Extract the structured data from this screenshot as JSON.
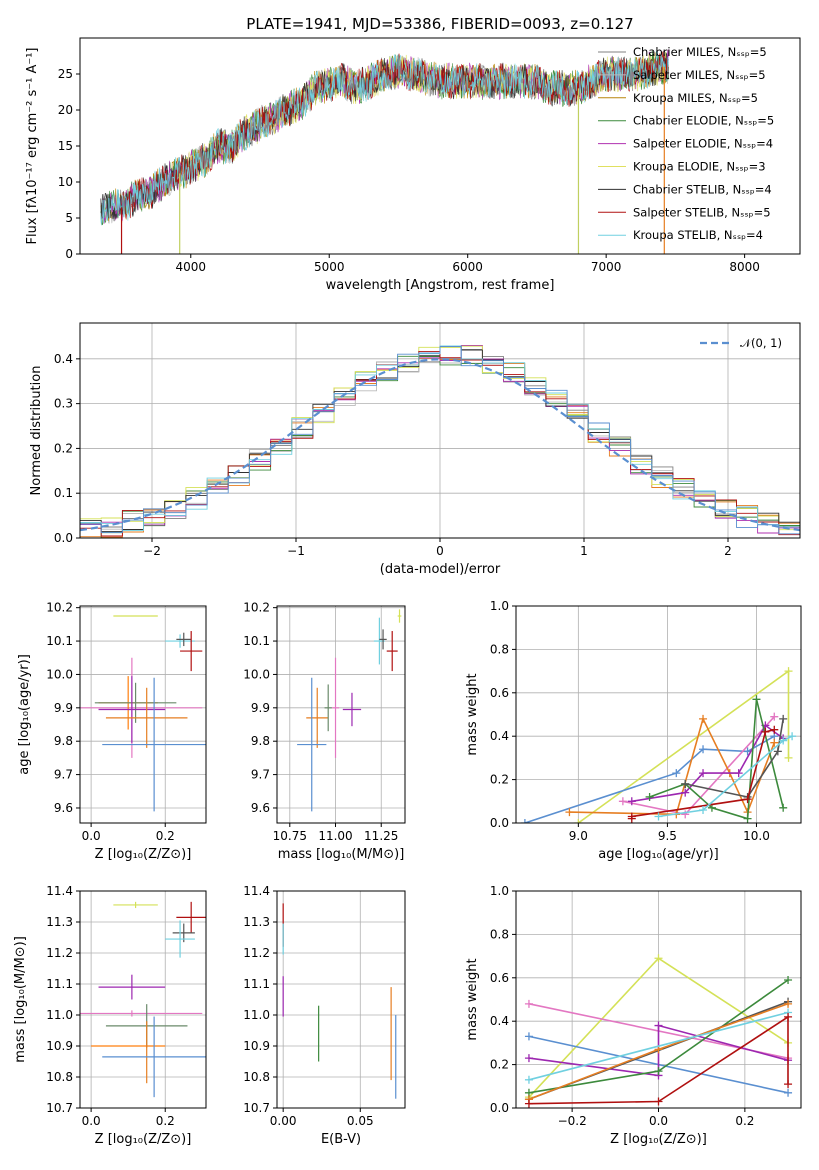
{
  "chart_data": [
    {
      "id": "spectrum",
      "type": "line",
      "title": "PLATE=1941, MJD=53386, FIBERID=0093, z=0.127",
      "xlabel": "wavelength [Angstrom, rest frame]",
      "ylabel": "Flux [fλ10⁻¹⁷ erg cm⁻² s⁻¹ A⁻¹]",
      "xlim": [
        3200,
        8400
      ],
      "ylim": [
        0,
        30
      ],
      "xticks": [
        4000,
        5000,
        6000,
        7000,
        8000
      ],
      "yticks": [
        0,
        5,
        10,
        15,
        20,
        25
      ],
      "grid": false,
      "legend_position": "top-right",
      "legend": [
        {
          "label": "Chabrier MILES, Nₛₛₚ=5",
          "color": "#808080"
        },
        {
          "label": "Salpeter MILES, Nₛₛₚ=5",
          "color": "#bbbbbb"
        },
        {
          "label": "Kroupa MILES, Nₛₛₚ=5",
          "color": "#b8860b"
        },
        {
          "label": "Chabrier ELODIE, Nₛₛₚ=5",
          "color": "#3c8a3c"
        },
        {
          "label": "Salpeter ELODIE, Nₛₛₚ=4",
          "color": "#b030b0"
        },
        {
          "label": "Kroupa ELODIE, Nₛₛₚ=3",
          "color": "#e0e060"
        },
        {
          "label": "Chabrier STELIB, Nₛₛₚ=4",
          "color": "#303030"
        },
        {
          "label": "Salpeter STELIB, Nₛₛₚ=5",
          "color": "#b01010"
        },
        {
          "label": "Kroupa STELIB, Nₛₛₚ=4",
          "color": "#70d0e0"
        }
      ],
      "continuum": [
        [
          3350,
          5.5
        ],
        [
          3400,
          6.5
        ],
        [
          3500,
          6.5
        ],
        [
          3600,
          8
        ],
        [
          3700,
          8.5
        ],
        [
          3800,
          10
        ],
        [
          3900,
          11
        ],
        [
          4000,
          12
        ],
        [
          4100,
          13
        ],
        [
          4200,
          15
        ],
        [
          4300,
          15
        ],
        [
          4400,
          17
        ],
        [
          4500,
          18
        ],
        [
          4600,
          19
        ],
        [
          4700,
          20
        ],
        [
          4800,
          21
        ],
        [
          4900,
          23
        ],
        [
          5000,
          23.5
        ],
        [
          5100,
          24
        ],
        [
          5200,
          23
        ],
        [
          5300,
          24
        ],
        [
          5400,
          25
        ],
        [
          5500,
          25.5
        ],
        [
          5600,
          25
        ],
        [
          5700,
          24.5
        ],
        [
          5800,
          24
        ],
        [
          5900,
          24
        ],
        [
          6000,
          24
        ],
        [
          6100,
          24
        ],
        [
          6200,
          24
        ],
        [
          6300,
          24
        ],
        [
          6400,
          24
        ],
        [
          6500,
          24
        ],
        [
          6600,
          23
        ],
        [
          6700,
          23
        ],
        [
          6800,
          23
        ],
        [
          6900,
          24
        ],
        [
          7000,
          25
        ],
        [
          7100,
          25
        ],
        [
          7200,
          25
        ],
        [
          7300,
          25.5
        ],
        [
          7400,
          26
        ],
        [
          7450,
          26
        ]
      ],
      "drops": [
        [
          3500,
          0
        ],
        [
          3920,
          0
        ],
        [
          6800,
          0
        ],
        [
          7420,
          0
        ]
      ]
    },
    {
      "id": "residuals",
      "type": "line",
      "xlabel": "(data-model)/error",
      "ylabel": "Normed distribution",
      "xlim": [
        -2.5,
        2.5
      ],
      "ylim": [
        0,
        0.48
      ],
      "xticks": [
        -2,
        -1,
        0,
        1,
        2
      ],
      "yticks": [
        0.0,
        0.1,
        0.2,
        0.3,
        0.4
      ],
      "grid": true,
      "legend_position": "top-right",
      "reference_label": "𝒩(0, 1)",
      "reference_color": "#5a8fd0"
    },
    {
      "id": "age-vs-Z",
      "type": "scatter",
      "xlabel": "Z [log₁₀(Z/Z⊙)]",
      "ylabel": "age  [log₁₀(age/yr)]",
      "xlim": [
        -0.03,
        0.31
      ],
      "ylim": [
        9.555,
        10.205
      ],
      "xticks": [
        0.0,
        0.2
      ],
      "yticks": [
        9.6,
        9.7,
        9.8,
        9.9,
        10.0,
        10.1,
        10.2
      ],
      "grid": true,
      "points": [
        {
          "x": 0.12,
          "y": 10.175,
          "xerr": 0.06,
          "yerr": 0.0,
          "color": "#d4e157"
        },
        {
          "x": 0.24,
          "y": 10.1,
          "xerr": 0.04,
          "yerr": 0.02,
          "color": "#70d0e0"
        },
        {
          "x": 0.25,
          "y": 10.105,
          "xerr": 0.02,
          "yerr": 0.02,
          "color": "#555555"
        },
        {
          "x": 0.27,
          "y": 10.07,
          "xerr": 0.03,
          "yerr": 0.06,
          "color": "#b01010"
        },
        {
          "x": 0.11,
          "y": 9.9,
          "xerr": 0.19,
          "yerr": 0.15,
          "color": "#e377c2"
        },
        {
          "x": 0.1,
          "y": 9.915,
          "xerr": 0.08,
          "yerr": 0.08,
          "color": "#ff7f0e"
        },
        {
          "x": 0.12,
          "y": 9.915,
          "xerr": 0.11,
          "yerr": 0.06,
          "color": "#6a8a6a"
        },
        {
          "x": 0.11,
          "y": 9.895,
          "xerr": 0.09,
          "yerr": 0.1,
          "color": "#9c27b0"
        },
        {
          "x": 0.15,
          "y": 9.87,
          "xerr": 0.11,
          "yerr": 0.09,
          "color": "#e67e22"
        },
        {
          "x": 0.17,
          "y": 9.79,
          "xerr": 0.14,
          "yerr": 0.2,
          "color": "#5a8fd0"
        }
      ]
    },
    {
      "id": "age-vs-mass",
      "type": "scatter",
      "xlabel": "mass [log₁₀(M/M⊙)]",
      "ylabel": "",
      "xlim": [
        10.68,
        11.38
      ],
      "ylim": [
        9.555,
        10.205
      ],
      "xticks": [
        10.75,
        11.0,
        11.25
      ],
      "yticks": [
        9.6,
        9.7,
        9.8,
        9.9,
        10.0,
        10.1,
        10.2
      ],
      "grid": true,
      "points": [
        {
          "x": 11.35,
          "y": 10.175,
          "xerr": 0.01,
          "yerr": 0.02,
          "color": "#d4e157"
        },
        {
          "x": 11.24,
          "y": 10.1,
          "xerr": 0.03,
          "yerr": 0.07,
          "color": "#70d0e0"
        },
        {
          "x": 11.26,
          "y": 10.105,
          "xerr": 0.02,
          "yerr": 0.03,
          "color": "#555555"
        },
        {
          "x": 11.31,
          "y": 10.07,
          "xerr": 0.03,
          "yerr": 0.06,
          "color": "#b01010"
        },
        {
          "x": 11.0,
          "y": 9.9,
          "xerr": 0.02,
          "yerr": 0.15,
          "color": "#e377c2"
        },
        {
          "x": 10.9,
          "y": 9.87,
          "xerr": 0.06,
          "yerr": 0.09,
          "color": "#e67e22"
        },
        {
          "x": 10.96,
          "y": 9.9,
          "xerr": 0.02,
          "yerr": 0.07,
          "color": "#6a8a6a"
        },
        {
          "x": 11.09,
          "y": 9.895,
          "xerr": 0.05,
          "yerr": 0.05,
          "color": "#9c27b0"
        },
        {
          "x": 10.87,
          "y": 9.79,
          "xerr": 0.08,
          "yerr": 0.2,
          "color": "#5a8fd0"
        }
      ]
    },
    {
      "id": "weights-vs-age",
      "type": "line",
      "xlabel": "age  [log₁₀(age/yr)]",
      "ylabel": "mass weight",
      "xlim": [
        8.65,
        10.25
      ],
      "ylim": [
        0,
        1
      ],
      "xticks": [
        9.0,
        9.5,
        10.0
      ],
      "yticks": [
        0.0,
        0.2,
        0.4,
        0.6,
        0.8,
        1.0
      ],
      "grid": true,
      "series": [
        {
          "color": "#d4e157",
          "x": [
            9.0,
            10.18,
            10.18
          ],
          "y": [
            0.0,
            0.7,
            0.3
          ]
        },
        {
          "color": "#5a8fd0",
          "x": [
            8.7,
            9.55,
            9.7,
            9.95,
            10.1
          ],
          "y": [
            0.0,
            0.23,
            0.34,
            0.33,
            0.4
          ]
        },
        {
          "color": "#e377c2",
          "x": [
            9.25,
            9.6,
            10.1
          ],
          "y": [
            0.1,
            0.04,
            0.49
          ]
        },
        {
          "color": "#e67e22",
          "x": [
            8.95,
            9.55,
            9.7,
            9.85,
            9.95,
            10.1
          ],
          "y": [
            0.05,
            0.04,
            0.48,
            0.23,
            0.05,
            0.37
          ]
        },
        {
          "color": "#9c27b0",
          "x": [
            9.3,
            9.6,
            9.7,
            9.9,
            10.05,
            10.15
          ],
          "y": [
            0.1,
            0.14,
            0.23,
            0.23,
            0.45,
            0.39
          ]
        },
        {
          "color": "#3c8a3c",
          "x": [
            9.4,
            9.6,
            9.75,
            9.95,
            10.0,
            10.15
          ],
          "y": [
            0.12,
            0.18,
            0.07,
            0.02,
            0.57,
            0.07
          ]
        },
        {
          "color": "#555555",
          "x": [
            9.6,
            9.95,
            10.12,
            10.15
          ],
          "y": [
            0.18,
            0.12,
            0.33,
            0.48
          ]
        },
        {
          "color": "#b01010",
          "x": [
            9.3,
            9.3,
            9.95,
            10.05,
            10.1
          ],
          "y": [
            0.02,
            0.03,
            0.11,
            0.42,
            0.43
          ]
        },
        {
          "color": "#70d0e0",
          "x": [
            9.45,
            9.7,
            10.15,
            10.2
          ],
          "y": [
            0.03,
            0.06,
            0.38,
            0.4
          ]
        }
      ]
    },
    {
      "id": "mass-vs-Z",
      "type": "scatter",
      "xlabel": "Z [log₁₀(Z/Z⊙)]",
      "ylabel": "mass [log₁₀(M/M⊙)]",
      "xlim": [
        -0.03,
        0.31
      ],
      "ylim": [
        10.7,
        11.4
      ],
      "xticks": [
        0.0,
        0.2
      ],
      "yticks": [
        10.7,
        10.8,
        10.9,
        11.0,
        11.1,
        11.2,
        11.3,
        11.4
      ],
      "grid": true,
      "points": [
        {
          "x": 0.12,
          "y": 11.355,
          "xerr": 0.06,
          "yerr": 0.01,
          "color": "#d4e157"
        },
        {
          "x": 0.27,
          "y": 11.315,
          "xerr": 0.04,
          "yerr": 0.05,
          "color": "#b01010"
        },
        {
          "x": 0.25,
          "y": 11.265,
          "xerr": 0.03,
          "yerr": 0.03,
          "color": "#555555"
        },
        {
          "x": 0.24,
          "y": 11.245,
          "xerr": 0.04,
          "yerr": 0.06,
          "color": "#70d0e0"
        },
        {
          "x": 0.11,
          "y": 11.09,
          "xerr": 0.09,
          "yerr": 0.04,
          "color": "#9c27b0"
        },
        {
          "x": 0.11,
          "y": 11.005,
          "xerr": 0.19,
          "yerr": 0.01,
          "color": "#e377c2"
        },
        {
          "x": 0.15,
          "y": 10.965,
          "xerr": 0.11,
          "yerr": 0.07,
          "color": "#6a8a6a"
        },
        {
          "x": 0.1,
          "y": 10.9,
          "xerr": 0.1,
          "yerr": 0.0,
          "color": "#ff7f0e"
        },
        {
          "x": 0.15,
          "y": 10.88,
          "xerr": 0.0,
          "yerr": 0.1,
          "color": "#e67e22"
        },
        {
          "x": 0.17,
          "y": 10.865,
          "xerr": 0.14,
          "yerr": 0.13,
          "color": "#5a8fd0"
        }
      ]
    },
    {
      "id": "mass-vs-EBV",
      "type": "scatter",
      "xlabel": "E(B-V)",
      "ylabel": "",
      "xlim": [
        -0.004,
        0.079
      ],
      "ylim": [
        10.7,
        11.4
      ],
      "xticks": [
        0.0,
        0.05
      ],
      "yticks": [
        10.7,
        10.8,
        10.9,
        11.0,
        11.1,
        11.2,
        11.3,
        11.4
      ],
      "grid": true,
      "points": [
        {
          "x": 0.0,
          "y": 11.29,
          "xerr": 0,
          "yerr": 0.07,
          "color": "#b01010"
        },
        {
          "x": 0.0,
          "y": 11.245,
          "xerr": 0,
          "yerr": 0.05,
          "color": "#70d0e0"
        },
        {
          "x": 0.0,
          "y": 11.06,
          "xerr": 0,
          "yerr": 0.065,
          "color": "#9c27b0"
        },
        {
          "x": 0.023,
          "y": 10.94,
          "xerr": 0,
          "yerr": 0.09,
          "color": "#3c8a3c"
        },
        {
          "x": 0.07,
          "y": 10.94,
          "xerr": 0,
          "yerr": 0.15,
          "color": "#e67e22"
        },
        {
          "x": 0.073,
          "y": 10.865,
          "xerr": 0,
          "yerr": 0.135,
          "color": "#5a8fd0"
        }
      ]
    },
    {
      "id": "weights-vs-Z",
      "type": "line",
      "xlabel": "Z [log₁₀(Z/Z⊙)]",
      "ylabel": "mass weight",
      "xlim": [
        -0.33,
        0.33
      ],
      "ylim": [
        0,
        1
      ],
      "xticks": [
        -0.2,
        0.0,
        0.2
      ],
      "yticks": [
        0.0,
        0.2,
        0.4,
        0.6,
        0.8,
        1.0
      ],
      "grid": true,
      "series": [
        {
          "color": "#d4e157",
          "x": [
            -0.3,
            0.0,
            0.3
          ],
          "y": [
            0.05,
            0.69,
            0.3
          ]
        },
        {
          "color": "#e377c2",
          "x": [
            -0.3,
            0.3
          ],
          "y": [
            0.48,
            0.23
          ]
        },
        {
          "color": "#5a8fd0",
          "x": [
            -0.3,
            0.3
          ],
          "y": [
            0.33,
            0.07
          ]
        },
        {
          "color": "#9c27b0",
          "x": [
            -0.3,
            0.0,
            0.0,
            0.3
          ],
          "y": [
            0.23,
            0.15,
            0.38,
            0.22
          ]
        },
        {
          "color": "#3c8a3c",
          "x": [
            -0.3,
            0.0,
            0.3
          ],
          "y": [
            0.07,
            0.17,
            0.59
          ]
        },
        {
          "color": "#555555",
          "x": [
            -0.3,
            0.3
          ],
          "y": [
            0.04,
            0.49
          ]
        },
        {
          "color": "#e67e22",
          "x": [
            -0.3,
            0.0,
            0.3
          ],
          "y": [
            0.04,
            0.27,
            0.48
          ]
        },
        {
          "color": "#70d0e0",
          "x": [
            -0.3,
            0.3
          ],
          "y": [
            0.13,
            0.44
          ]
        },
        {
          "color": "#b01010",
          "x": [
            -0.3,
            0.0,
            0.3,
            0.3
          ],
          "y": [
            0.02,
            0.03,
            0.42,
            0.11
          ]
        }
      ]
    }
  ]
}
